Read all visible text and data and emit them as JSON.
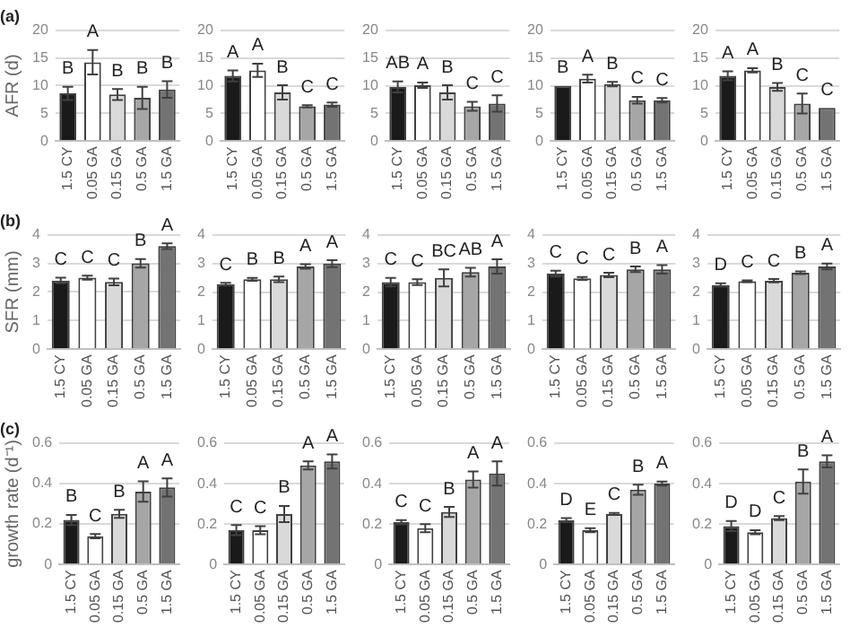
{
  "chart_data": [
    {
      "type": "bar",
      "title": "(a)",
      "ylabel": "AFR (d)",
      "categories": [
        "1.5 CY",
        "0.05 GA",
        "0.15 GA",
        "0.5 GA",
        "1.5 GA"
      ],
      "values": [
        8.6,
        14.2,
        8.4,
        7.8,
        9.3
      ],
      "errors": [
        1.2,
        2.2,
        1,
        2,
        1.5
      ],
      "colors": [
        "#1a1a1a",
        "#ffffff",
        "#d9d9d9",
        "#a6a6a6",
        "#737373"
      ],
      "ylim": [
        0,
        20
      ],
      "yticks": [
        0,
        5,
        10,
        15,
        20
      ],
      "grid": "y",
      "annotations": [
        {
          "text": "B",
          "x": "1.5 CY",
          "y": 9.8
        },
        {
          "text": "A",
          "x": "0.05 GA",
          "y": 16.4
        },
        {
          "text": "B",
          "x": "0.15 GA",
          "y": 9.4
        },
        {
          "text": "B",
          "x": "0.5 GA",
          "y": 9.8
        },
        {
          "text": "B",
          "x": "1.5 GA",
          "y": 10.8
        }
      ]
    },
    {
      "type": "bar",
      "categories": [
        "1.5 CY",
        "0.05 GA",
        "0.15 GA",
        "0.5 GA",
        "1.5 GA"
      ],
      "values": [
        11.8,
        12.8,
        8.8,
        6.3,
        6.6
      ],
      "errors": [
        1,
        1.2,
        1.3,
        0.2,
        0.4
      ],
      "colors": [
        "#1a1a1a",
        "#ffffff",
        "#d9d9d9",
        "#a6a6a6",
        "#737373"
      ],
      "ylim": [
        0,
        20
      ],
      "yticks": [
        0,
        5,
        10,
        15,
        20
      ],
      "grid": "y",
      "annotations": [
        {
          "text": "A",
          "x": "1.5 CY",
          "y": 12.8
        },
        {
          "text": "A",
          "x": "0.05 GA",
          "y": 14
        },
        {
          "text": "B",
          "x": "0.15 GA",
          "y": 10.1
        },
        {
          "text": "C",
          "x": "0.5 GA",
          "y": 6.5
        },
        {
          "text": "C",
          "x": "1.5 GA",
          "y": 7
        }
      ]
    },
    {
      "type": "bar",
      "categories": [
        "1.5 CY",
        "0.05 GA",
        "0.15 GA",
        "0.5 GA",
        "1.5 GA"
      ],
      "values": [
        9.8,
        10.1,
        8.8,
        6.3,
        6.8
      ],
      "errors": [
        1,
        0.5,
        1.3,
        0.8,
        1.5
      ],
      "colors": [
        "#1a1a1a",
        "#ffffff",
        "#d9d9d9",
        "#a6a6a6",
        "#737373"
      ],
      "ylim": [
        0,
        20
      ],
      "yticks": [
        0,
        5,
        10,
        15,
        20
      ],
      "grid": "y",
      "annotations": [
        {
          "text": "AB",
          "x": "1.5 CY",
          "y": 10.8
        },
        {
          "text": "A",
          "x": "0.05 GA",
          "y": 10.6
        },
        {
          "text": "B",
          "x": "0.15 GA",
          "y": 10.1
        },
        {
          "text": "C",
          "x": "0.5 GA",
          "y": 7.1
        },
        {
          "text": "C",
          "x": "1.5 GA",
          "y": 8.3
        }
      ]
    },
    {
      "type": "bar",
      "categories": [
        "1.5 CY",
        "0.05 GA",
        "0.15 GA",
        "0.5 GA",
        "1.5 GA"
      ],
      "values": [
        10,
        11.3,
        10.3,
        7.4,
        7.4
      ],
      "errors": [
        null,
        0.7,
        0.4,
        0.6,
        0.4
      ],
      "colors": [
        "#1a1a1a",
        "#ffffff",
        "#d9d9d9",
        "#a6a6a6",
        "#737373"
      ],
      "ylim": [
        0,
        20
      ],
      "yticks": [
        0,
        5,
        10,
        15,
        20
      ],
      "grid": "y",
      "annotations": [
        {
          "text": "B",
          "x": "1.5 CY",
          "y": 10
        },
        {
          "text": "A",
          "x": "0.05 GA",
          "y": 12
        },
        {
          "text": "B",
          "x": "0.15 GA",
          "y": 10.7
        },
        {
          "text": "C",
          "x": "0.5 GA",
          "y": 8
        },
        {
          "text": "C",
          "x": "1.5 GA",
          "y": 7.8
        }
      ]
    },
    {
      "type": "bar",
      "categories": [
        "1.5 CY",
        "0.05 GA",
        "0.15 GA",
        "0.5 GA",
        "1.5 GA"
      ],
      "values": [
        11.8,
        12.8,
        9.8,
        6.8,
        6
      ],
      "errors": [
        0.8,
        0.4,
        0.7,
        1.8,
        null
      ],
      "colors": [
        "#1a1a1a",
        "#ffffff",
        "#d9d9d9",
        "#a6a6a6",
        "#737373"
      ],
      "ylim": [
        0,
        20
      ],
      "yticks": [
        0,
        5,
        10,
        15,
        20
      ],
      "grid": "y",
      "annotations": [
        {
          "text": "A",
          "x": "1.5 CY",
          "y": 12.6
        },
        {
          "text": "A",
          "x": "0.05 GA",
          "y": 13.2
        },
        {
          "text": "B",
          "x": "0.15 GA",
          "y": 10.5
        },
        {
          "text": "C",
          "x": "0.5 GA",
          "y": 8.6
        },
        {
          "text": "C",
          "x": "1.5 GA",
          "y": 6
        }
      ]
    },
    {
      "type": "bar",
      "title": "(b)",
      "ylabel": "SFR (mm)",
      "categories": [
        "1.5 CY",
        "0.05 GA",
        "0.15 GA",
        "0.5 GA",
        "1.5 GA"
      ],
      "values": [
        2.4,
        2.5,
        2.35,
        3,
        3.6
      ],
      "errors": [
        0.1,
        0.07,
        0.12,
        0.15,
        0.1
      ],
      "colors": [
        "#1a1a1a",
        "#ffffff",
        "#d9d9d9",
        "#a6a6a6",
        "#737373"
      ],
      "ylim": [
        0,
        4
      ],
      "yticks": [
        0,
        1,
        2,
        3,
        4
      ],
      "grid": "y",
      "annotations": [
        {
          "text": "C",
          "x": "1.5 CY",
          "y": 2.5
        },
        {
          "text": "C",
          "x": "0.05 GA",
          "y": 2.57
        },
        {
          "text": "C",
          "x": "0.15 GA",
          "y": 2.47
        },
        {
          "text": "B",
          "x": "0.5 GA",
          "y": 3.15
        },
        {
          "text": "A",
          "x": "1.5 GA",
          "y": 3.7
        }
      ]
    },
    {
      "type": "bar",
      "categories": [
        "1.5 CY",
        "0.05 GA",
        "0.15 GA",
        "0.5 GA",
        "1.5 GA"
      ],
      "values": [
        2.28,
        2.45,
        2.45,
        2.9,
        3
      ],
      "errors": [
        0.05,
        0.05,
        0.1,
        0.08,
        0.12
      ],
      "colors": [
        "#1a1a1a",
        "#ffffff",
        "#d9d9d9",
        "#a6a6a6",
        "#737373"
      ],
      "ylim": [
        0,
        4
      ],
      "yticks": [
        0,
        1,
        2,
        3,
        4
      ],
      "grid": "y",
      "annotations": [
        {
          "text": "C",
          "x": "1.5 CY",
          "y": 2.33
        },
        {
          "text": "B",
          "x": "0.05 GA",
          "y": 2.5
        },
        {
          "text": "B",
          "x": "0.15 GA",
          "y": 2.55
        },
        {
          "text": "A",
          "x": "0.5 GA",
          "y": 2.98
        },
        {
          "text": "A",
          "x": "1.5 GA",
          "y": 3.12
        }
      ]
    },
    {
      "type": "bar",
      "categories": [
        "1.5 CY",
        "0.05 GA",
        "0.15 GA",
        "0.5 GA",
        "1.5 GA"
      ],
      "values": [
        2.35,
        2.35,
        2.5,
        2.7,
        2.9
      ],
      "errors": [
        0.15,
        0.1,
        0.3,
        0.15,
        0.25
      ],
      "colors": [
        "#1a1a1a",
        "#ffffff",
        "#d9d9d9",
        "#a6a6a6",
        "#737373"
      ],
      "ylim": [
        0,
        4
      ],
      "yticks": [
        0,
        1,
        2,
        3,
        4
      ],
      "grid": "y",
      "annotations": [
        {
          "text": "C",
          "x": "1.5 CY",
          "y": 2.5
        },
        {
          "text": "C",
          "x": "0.05 GA",
          "y": 2.45
        },
        {
          "text": "BC",
          "x": "0.15 GA",
          "y": 2.8
        },
        {
          "text": "AB",
          "x": "0.5 GA",
          "y": 2.85
        },
        {
          "text": "A",
          "x": "1.5 GA",
          "y": 3.15
        }
      ]
    },
    {
      "type": "bar",
      "categories": [
        "1.5 CY",
        "0.05 GA",
        "0.15 GA",
        "0.5 GA",
        "1.5 GA"
      ],
      "values": [
        2.65,
        2.48,
        2.6,
        2.8,
        2.8
      ],
      "errors": [
        0.1,
        0.05,
        0.08,
        0.1,
        0.15
      ],
      "colors": [
        "#1a1a1a",
        "#ffffff",
        "#d9d9d9",
        "#a6a6a6",
        "#737373"
      ],
      "ylim": [
        0,
        4
      ],
      "yticks": [
        0,
        1,
        2,
        3,
        4
      ],
      "grid": "y",
      "annotations": [
        {
          "text": "C",
          "x": "1.5 CY",
          "y": 2.75
        },
        {
          "text": "C",
          "x": "0.05 GA",
          "y": 2.53
        },
        {
          "text": "C",
          "x": "0.15 GA",
          "y": 2.68
        },
        {
          "text": "B",
          "x": "0.5 GA",
          "y": 2.9
        },
        {
          "text": "A",
          "x": "1.5 GA",
          "y": 2.95
        }
      ]
    },
    {
      "type": "bar",
      "categories": [
        "1.5 CY",
        "0.05 GA",
        "0.15 GA",
        "0.5 GA",
        "1.5 GA"
      ],
      "values": [
        2.25,
        2.38,
        2.4,
        2.68,
        2.9
      ],
      "errors": [
        0.06,
        0.03,
        0.06,
        0.05,
        0.1
      ],
      "colors": [
        "#1a1a1a",
        "#ffffff",
        "#d9d9d9",
        "#a6a6a6",
        "#737373"
      ],
      "ylim": [
        0,
        4
      ],
      "yticks": [
        0,
        1,
        2,
        3,
        4
      ],
      "grid": "y",
      "annotations": [
        {
          "text": "D",
          "x": "1.5 CY",
          "y": 2.31
        },
        {
          "text": "C",
          "x": "0.05 GA",
          "y": 2.41
        },
        {
          "text": "C",
          "x": "0.15 GA",
          "y": 2.46
        },
        {
          "text": "B",
          "x": "0.5 GA",
          "y": 2.73
        },
        {
          "text": "A",
          "x": "1.5 GA",
          "y": 3
        }
      ]
    },
    {
      "type": "bar",
      "title": "(c)",
      "ylabel": "growth rate (d⁻¹)",
      "categories": [
        "1.5 CY",
        "0.05 GA",
        "0.15 GA",
        "0.5 GA",
        "1.5 GA"
      ],
      "values": [
        0.22,
        0.14,
        0.25,
        0.36,
        0.38
      ],
      "errors": [
        0.025,
        0.01,
        0.02,
        0.05,
        0.045
      ],
      "colors": [
        "#1a1a1a",
        "#ffffff",
        "#d9d9d9",
        "#a6a6a6",
        "#737373"
      ],
      "ylim": [
        0,
        0.6
      ],
      "yticks": [
        0,
        0.2,
        0.4,
        0.6
      ],
      "grid": "y",
      "annotations": [
        {
          "text": "B",
          "x": "1.5 CY",
          "y": 0.245
        },
        {
          "text": "C",
          "x": "0.05 GA",
          "y": 0.15
        },
        {
          "text": "B",
          "x": "0.15 GA",
          "y": 0.27
        },
        {
          "text": "A",
          "x": "0.5 GA",
          "y": 0.41
        },
        {
          "text": "A",
          "x": "1.5 GA",
          "y": 0.425
        }
      ]
    },
    {
      "type": "bar",
      "categories": [
        "1.5 CY",
        "0.05 GA",
        "0.15 GA",
        "0.5 GA",
        "1.5 GA"
      ],
      "values": [
        0.17,
        0.17,
        0.25,
        0.49,
        0.51
      ],
      "errors": [
        0.025,
        0.02,
        0.04,
        0.02,
        0.035
      ],
      "colors": [
        "#1a1a1a",
        "#ffffff",
        "#d9d9d9",
        "#a6a6a6",
        "#737373"
      ],
      "ylim": [
        0,
        0.6
      ],
      "yticks": [
        0,
        0.2,
        0.4,
        0.6
      ],
      "grid": "y",
      "annotations": [
        {
          "text": "C",
          "x": "1.5 CY",
          "y": 0.195
        },
        {
          "text": "C",
          "x": "0.05 GA",
          "y": 0.19
        },
        {
          "text": "B",
          "x": "0.15 GA",
          "y": 0.29
        },
        {
          "text": "A",
          "x": "0.5 GA",
          "y": 0.51
        },
        {
          "text": "A",
          "x": "1.5 GA",
          "y": 0.545
        }
      ]
    },
    {
      "type": "bar",
      "categories": [
        "1.5 CY",
        "0.05 GA",
        "0.15 GA",
        "0.5 GA",
        "1.5 GA"
      ],
      "values": [
        0.21,
        0.18,
        0.26,
        0.42,
        0.45
      ],
      "errors": [
        0.01,
        0.02,
        0.025,
        0.04,
        0.06
      ],
      "colors": [
        "#1a1a1a",
        "#ffffff",
        "#d9d9d9",
        "#a6a6a6",
        "#737373"
      ],
      "ylim": [
        0,
        0.6
      ],
      "yticks": [
        0,
        0.2,
        0.4,
        0.6
      ],
      "grid": "y",
      "annotations": [
        {
          "text": "C",
          "x": "1.5 CY",
          "y": 0.22
        },
        {
          "text": "C",
          "x": "0.05 GA",
          "y": 0.2
        },
        {
          "text": "B",
          "x": "0.15 GA",
          "y": 0.285
        },
        {
          "text": "A",
          "x": "0.5 GA",
          "y": 0.46
        },
        {
          "text": "A",
          "x": "1.5 GA",
          "y": 0.51
        }
      ]
    },
    {
      "type": "bar",
      "categories": [
        "1.5 CY",
        "0.05 GA",
        "0.15 GA",
        "0.5 GA",
        "1.5 GA"
      ],
      "values": [
        0.22,
        0.17,
        0.25,
        0.37,
        0.4
      ],
      "errors": [
        0.01,
        0.01,
        0.005,
        0.025,
        0.01
      ],
      "colors": [
        "#1a1a1a",
        "#ffffff",
        "#d9d9d9",
        "#a6a6a6",
        "#737373"
      ],
      "ylim": [
        0,
        0.6
      ],
      "yticks": [
        0,
        0.2,
        0.4,
        0.6
      ],
      "grid": "y",
      "annotations": [
        {
          "text": "D",
          "x": "1.5 CY",
          "y": 0.23
        },
        {
          "text": "E",
          "x": "0.05 GA",
          "y": 0.18
        },
        {
          "text": "C",
          "x": "0.15 GA",
          "y": 0.255
        },
        {
          "text": "B",
          "x": "0.5 GA",
          "y": 0.395
        },
        {
          "text": "A",
          "x": "1.5 GA",
          "y": 0.41
        }
      ]
    },
    {
      "type": "bar",
      "categories": [
        "1.5 CY",
        "0.05 GA",
        "0.15 GA",
        "0.5 GA",
        "1.5 GA"
      ],
      "values": [
        0.19,
        0.16,
        0.23,
        0.41,
        0.51
      ],
      "errors": [
        0.025,
        0.01,
        0.01,
        0.06,
        0.03
      ],
      "colors": [
        "#1a1a1a",
        "#ffffff",
        "#d9d9d9",
        "#a6a6a6",
        "#737373"
      ],
      "ylim": [
        0,
        0.6
      ],
      "yticks": [
        0,
        0.2,
        0.4,
        0.6
      ],
      "grid": "y",
      "annotations": [
        {
          "text": "D",
          "x": "1.5 CY",
          "y": 0.215
        },
        {
          "text": "D",
          "x": "0.05 GA",
          "y": 0.17
        },
        {
          "text": "C",
          "x": "0.15 GA",
          "y": 0.24
        },
        {
          "text": "B",
          "x": "0.5 GA",
          "y": 0.47
        },
        {
          "text": "A",
          "x": "1.5 GA",
          "y": 0.54
        }
      ]
    }
  ]
}
